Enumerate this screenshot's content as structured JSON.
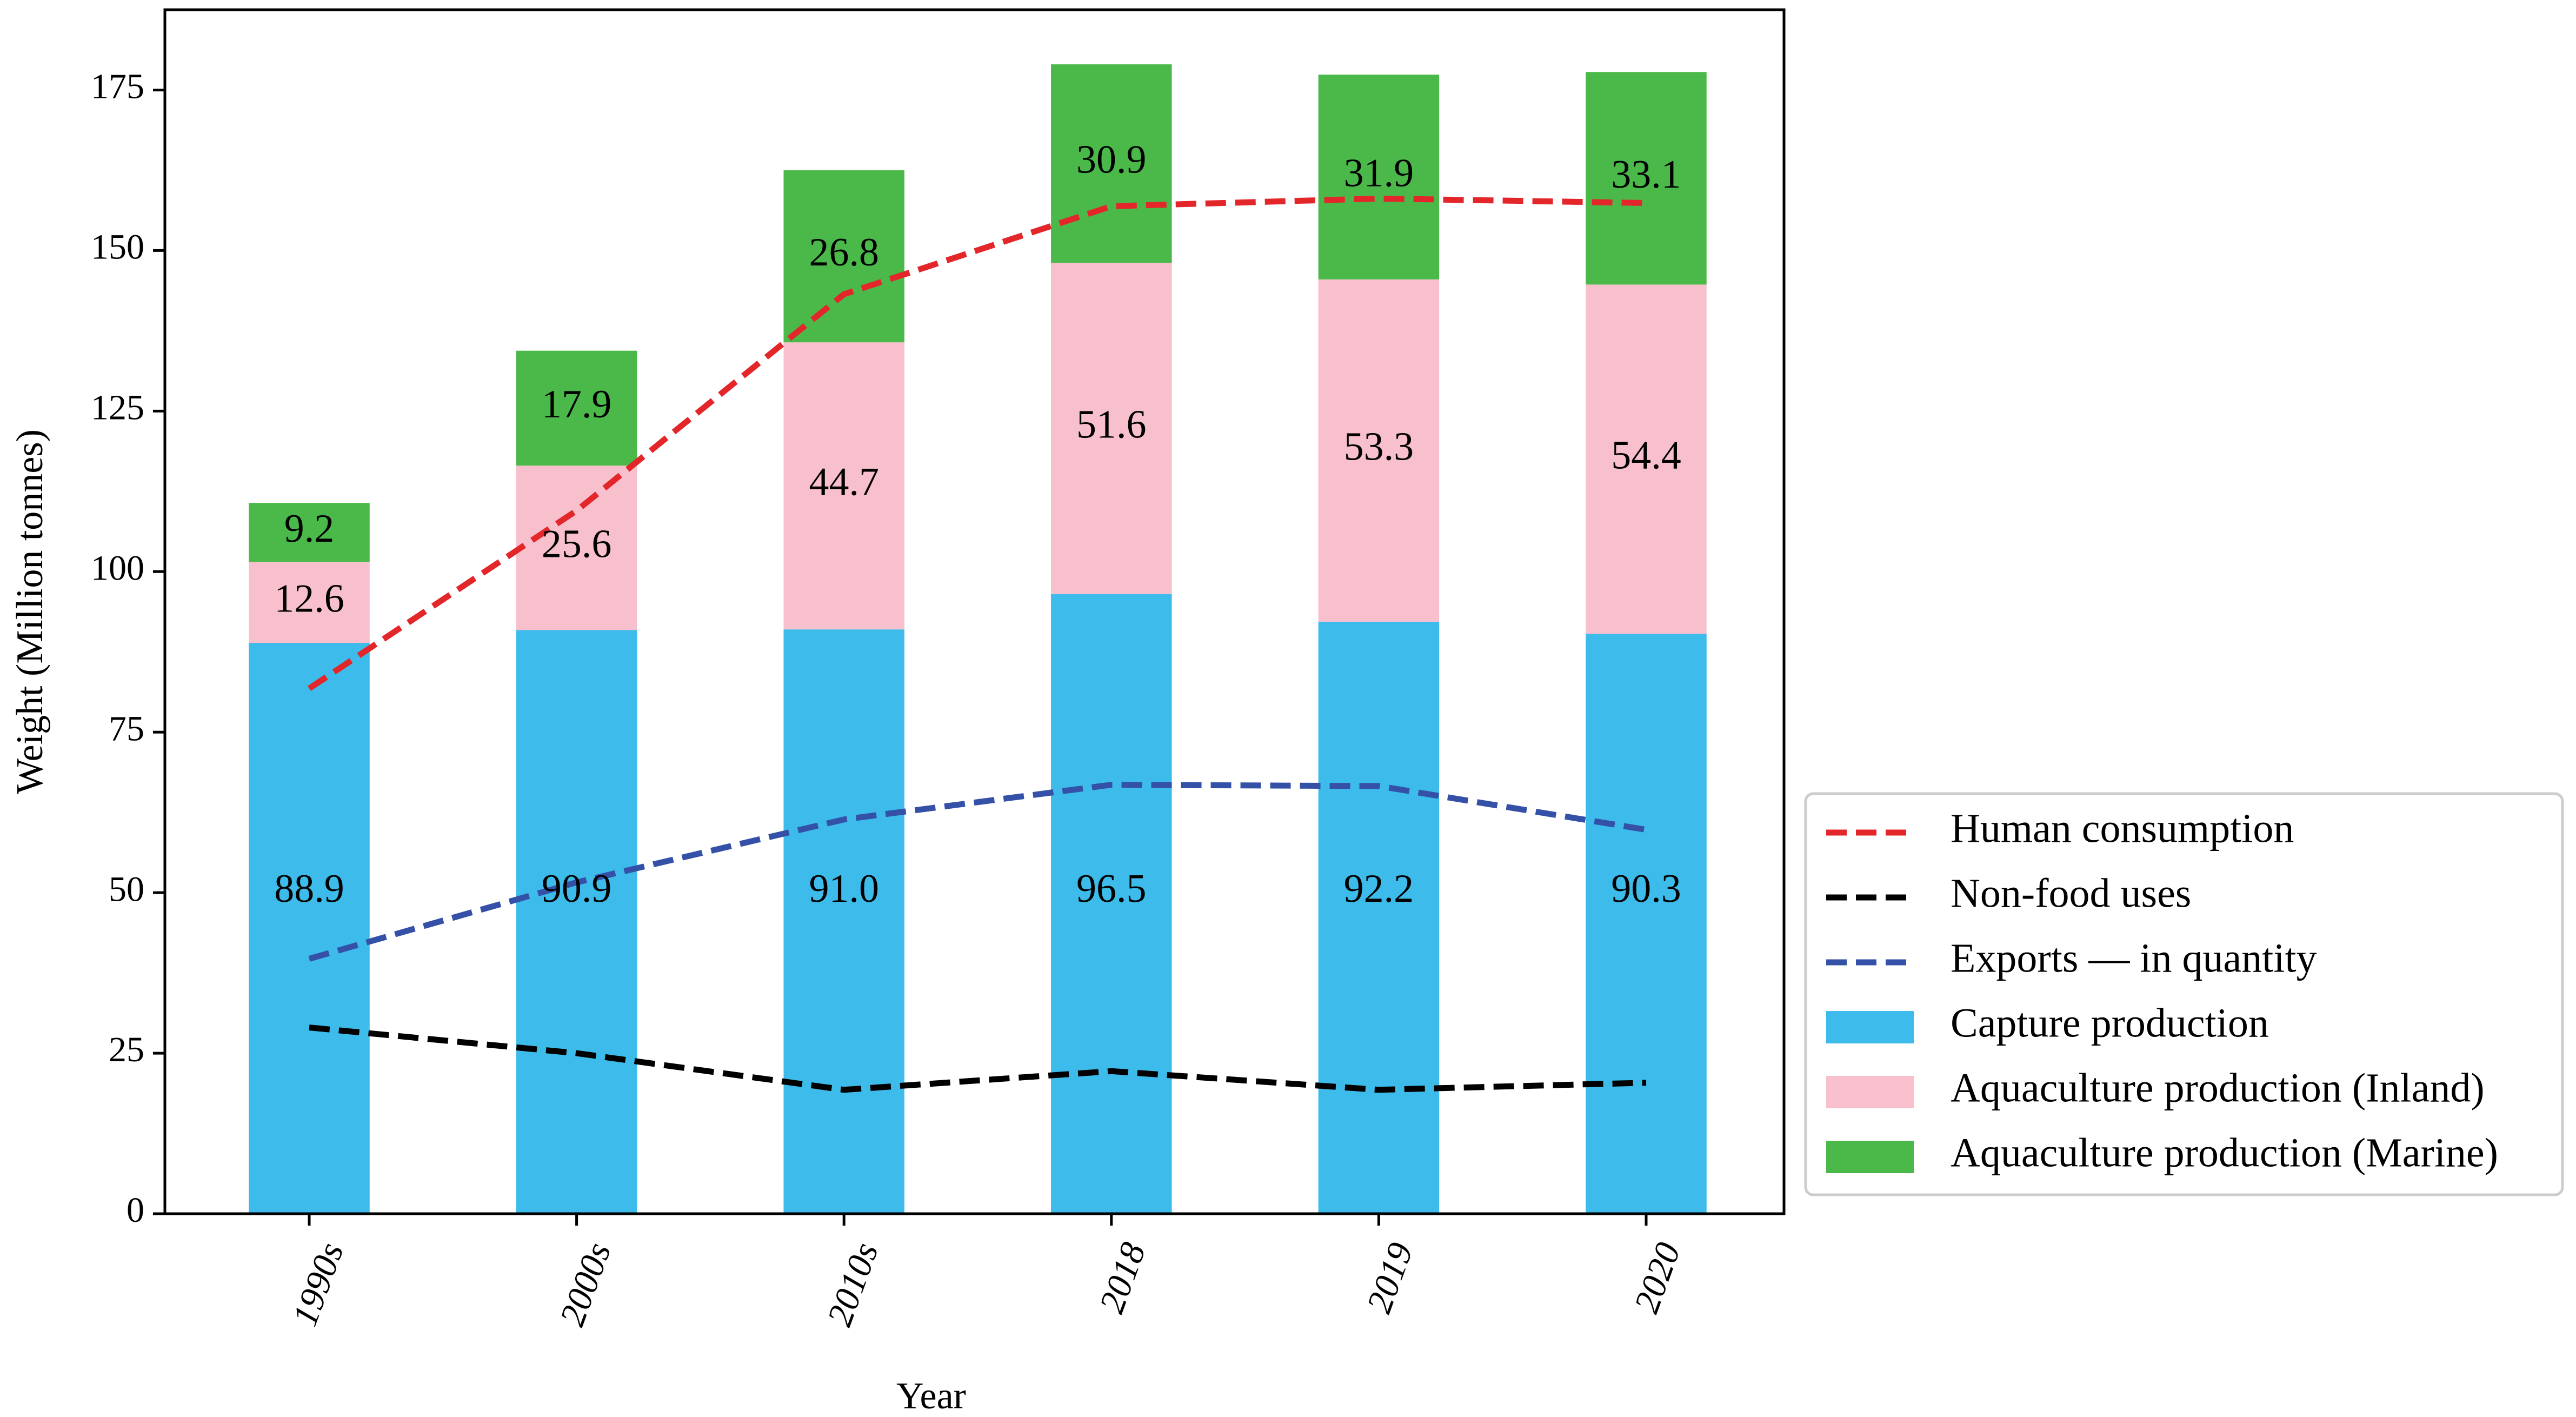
{
  "colors": {
    "capture": "#3dbbeb",
    "inland": "#f8bfcd",
    "marine": "#4bb94a",
    "human": "#e3262a",
    "nonfood": "#000000",
    "exports": "#3451a7"
  },
  "chart_data": {
    "type": "bar",
    "stacked": true,
    "title": "",
    "xlabel": "Year",
    "ylabel": "Weight (Million tonnes)",
    "ylim": [
      0,
      187.5
    ],
    "yticks": [
      0,
      25,
      50,
      75,
      100,
      125,
      150,
      175
    ],
    "ytick_labels": [
      "0",
      "25",
      "50",
      "75",
      "100",
      "125",
      "150",
      "175"
    ],
    "categories": [
      "1990s",
      "2000s",
      "2010s",
      "2018",
      "2019",
      "2020"
    ],
    "series": [
      {
        "key": "capture",
        "name": "Capture production",
        "type": "bar",
        "values": [
          88.9,
          90.9,
          91.0,
          96.5,
          92.2,
          90.3
        ],
        "labels": [
          "88.9",
          "90.9",
          "91.0",
          "96.5",
          "92.2",
          "90.3"
        ]
      },
      {
        "key": "inland",
        "name": "Aquaculture production (Inland)",
        "type": "bar",
        "values": [
          12.6,
          25.6,
          44.7,
          51.6,
          53.3,
          54.4
        ],
        "labels": [
          "12.6",
          "25.6",
          "44.7",
          "51.6",
          "53.3",
          "54.4"
        ]
      },
      {
        "key": "marine",
        "name": "Aquaculture production (Marine)",
        "type": "bar",
        "values": [
          9.2,
          17.9,
          26.8,
          30.9,
          31.9,
          33.1
        ],
        "labels": [
          "9.2",
          "17.9",
          "26.8",
          "30.9",
          "31.9",
          "33.1"
        ]
      },
      {
        "key": "human",
        "name": "Human consumption",
        "type": "line",
        "style": "dashed",
        "values": [
          81.8,
          109.5,
          143.2,
          156.9,
          158.1,
          157.4
        ]
      },
      {
        "key": "nonfood",
        "name": "Non-food uses",
        "type": "line",
        "style": "dashed",
        "values": [
          29.0,
          25.0,
          19.3,
          22.2,
          19.3,
          20.4
        ]
      },
      {
        "key": "exports",
        "name": "Exports — in quantity",
        "type": "line",
        "style": "dashed",
        "values": [
          39.7,
          51.6,
          61.4,
          66.8,
          66.6,
          59.8
        ]
      }
    ],
    "legend": {
      "position": "right, lower",
      "entries": [
        "Human consumption",
        "Non-food uses",
        "Exports — in quantity",
        "Capture production",
        "Aquaculture production (Inland)",
        "Aquaculture production (Marine)"
      ]
    },
    "grid": false
  }
}
